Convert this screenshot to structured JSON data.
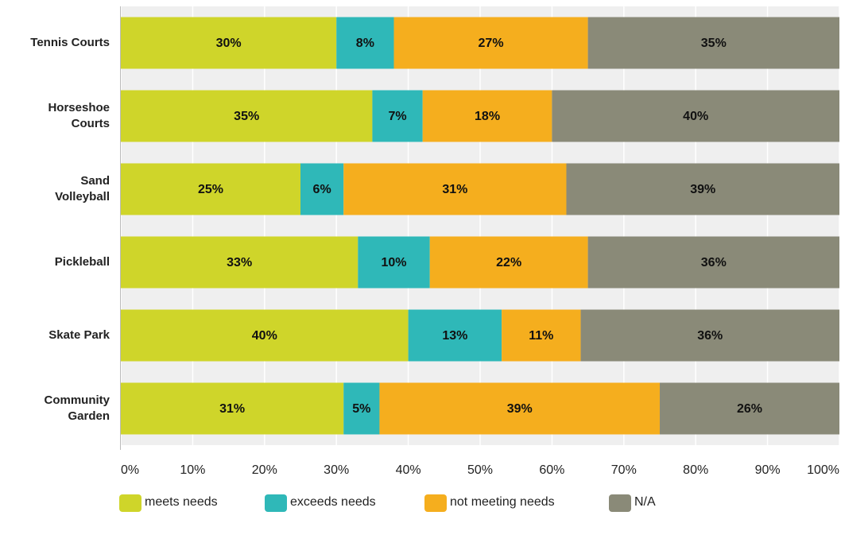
{
  "chart_data": {
    "type": "stacked_barh",
    "categories": [
      "Tennis Courts",
      "Horseshoe\nCourts",
      "Sand\nVolleyball",
      "Pickleball",
      "Skate Park",
      "Community\nGarden"
    ],
    "series": [
      {
        "name": "meets needs",
        "color": "#cfd52a",
        "values": [
          30,
          35,
          25,
          33,
          40,
          31
        ],
        "value_labels": [
          "30%",
          "35%",
          "25%",
          "33%",
          "40%",
          "31%"
        ]
      },
      {
        "name": "exceeds needs",
        "color": "#2fb8b8",
        "values": [
          8,
          7,
          6,
          10,
          13,
          5
        ],
        "value_labels": [
          "8%",
          "7%",
          "6%",
          "10%",
          "13%",
          "5%"
        ]
      },
      {
        "name": "not meeting needs",
        "color": "#f5ae1e",
        "values": [
          27,
          18,
          31,
          22,
          11,
          39
        ],
        "value_labels": [
          "27%",
          "18%",
          "31%",
          "22%",
          "11%",
          "39%"
        ]
      },
      {
        "name": "N/A",
        "color": "#8a8a78",
        "values": [
          35,
          40,
          39,
          36,
          36,
          26
        ],
        "value_labels": [
          "35%",
          "40%",
          "39%",
          "36%",
          "36%",
          "26%"
        ]
      }
    ],
    "xlim": [
      0,
      100
    ],
    "xticks": [
      {
        "value": 0,
        "label": "0%"
      },
      {
        "value": 10,
        "label": "10%"
      },
      {
        "value": 20,
        "label": "20%"
      },
      {
        "value": 30,
        "label": "30%"
      },
      {
        "value": 40,
        "label": "40%"
      },
      {
        "value": 50,
        "label": "50%"
      },
      {
        "value": 60,
        "label": "60%"
      },
      {
        "value": 70,
        "label": "70%"
      },
      {
        "value": 80,
        "label": "80%"
      },
      {
        "value": 90,
        "label": "90%"
      },
      {
        "value": 100,
        "label": "100%"
      }
    ],
    "grid": true,
    "legend": "bottom"
  }
}
